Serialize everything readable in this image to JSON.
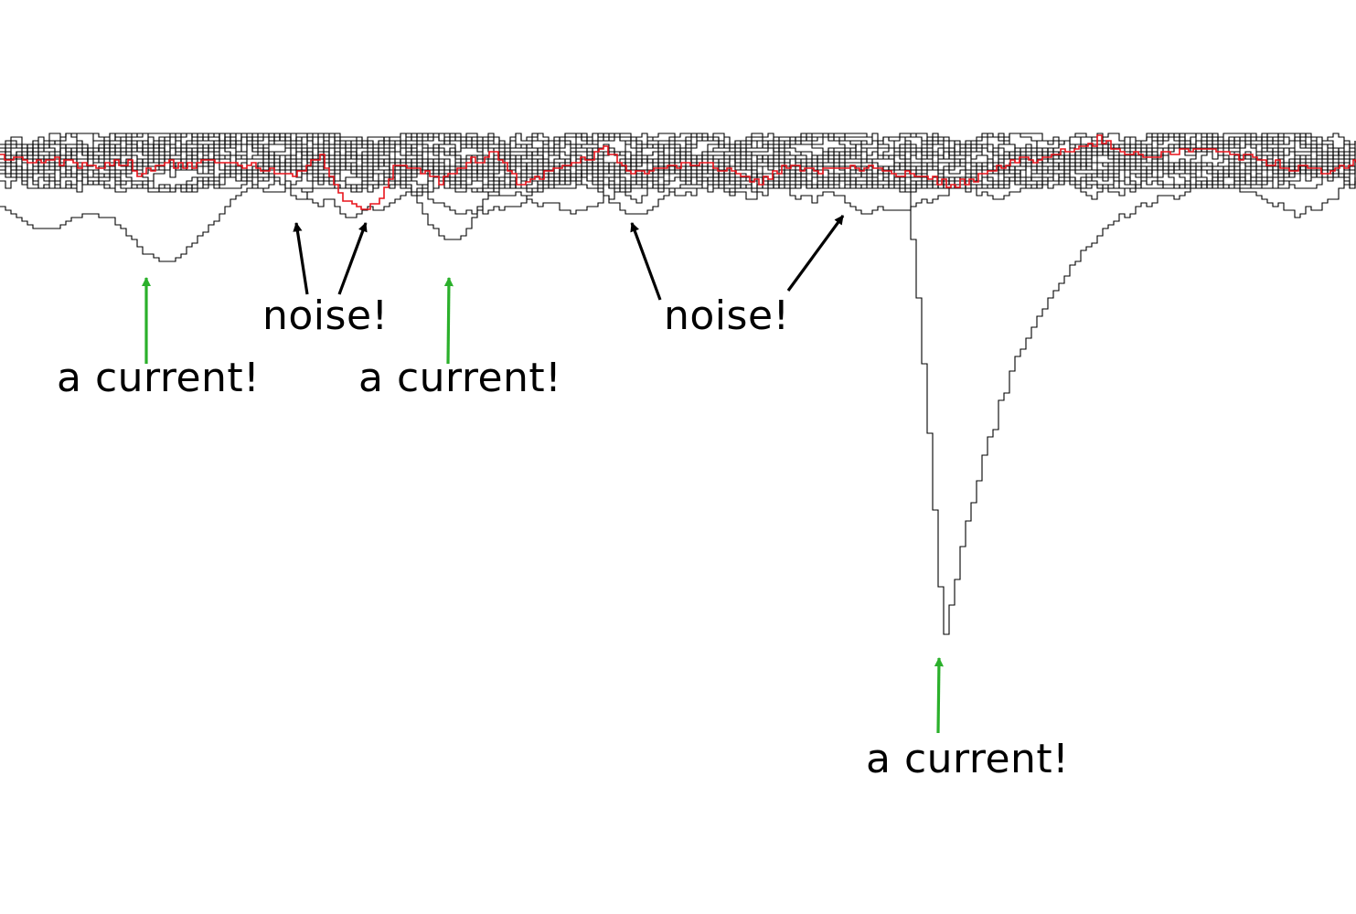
{
  "chart_data": {
    "type": "line",
    "title": "",
    "xlabel": "",
    "ylabel": "",
    "grid": false,
    "legend": "none",
    "xlim": [
      0,
      1483
    ],
    "ylim": [
      -560,
      100
    ],
    "colors": {
      "trace": "#000000",
      "highlight": "#e8141c",
      "current_arrow": "#2bb02b",
      "noise_arrow": "#000000"
    },
    "background_trace_count": 26,
    "noise_band": [
      -30,
      30
    ],
    "highlight_trace": {
      "x": [
        0,
        60,
        100,
        140,
        150,
        175,
        200,
        230,
        260,
        290,
        310,
        330,
        350,
        365,
        380,
        400,
        415,
        430,
        460,
        480,
        510,
        540,
        570,
        600,
        630,
        660,
        690,
        730,
        770,
        800,
        830,
        860,
        890,
        930,
        970,
        1010,
        1040,
        1070,
        1100,
        1140,
        1180,
        1200,
        1230,
        1260,
        1290,
        1330,
        1370,
        1410,
        1450,
        1483
      ],
      "y": [
        5,
        2,
        -3,
        0,
        -15,
        2,
        -5,
        3,
        -2,
        -8,
        -15,
        -5,
        5,
        -25,
        -45,
        -50,
        -40,
        -5,
        -10,
        -20,
        0,
        10,
        -25,
        -10,
        0,
        15,
        -10,
        -5,
        0,
        -10,
        -20,
        -5,
        -10,
        -5,
        -10,
        -15,
        -25,
        -15,
        0,
        5,
        15,
        25,
        10,
        5,
        15,
        10,
        5,
        -5,
        -10,
        0
      ]
    },
    "events": [
      {
        "x": 175,
        "y": -125
      },
      {
        "x": 490,
        "y": -95
      },
      {
        "x": 1030,
        "y": -525
      }
    ],
    "annotations": [
      {
        "text": "a current!",
        "x": 160,
        "y": -120,
        "kind": "current"
      },
      {
        "text": "noise!",
        "x": 330,
        "y": -50,
        "kind": "noise"
      },
      {
        "text": "noise!",
        "x": 400,
        "y": -55,
        "kind": "noise"
      },
      {
        "text": "a current!",
        "x": 490,
        "y": -95,
        "kind": "current"
      },
      {
        "text": "noise!",
        "x": 690,
        "y": -60,
        "kind": "noise"
      },
      {
        "text": "noise!",
        "x": 922,
        "y": -55,
        "kind": "noise"
      },
      {
        "text": "a current!",
        "x": 1028,
        "y": -540,
        "kind": "current"
      }
    ]
  }
}
